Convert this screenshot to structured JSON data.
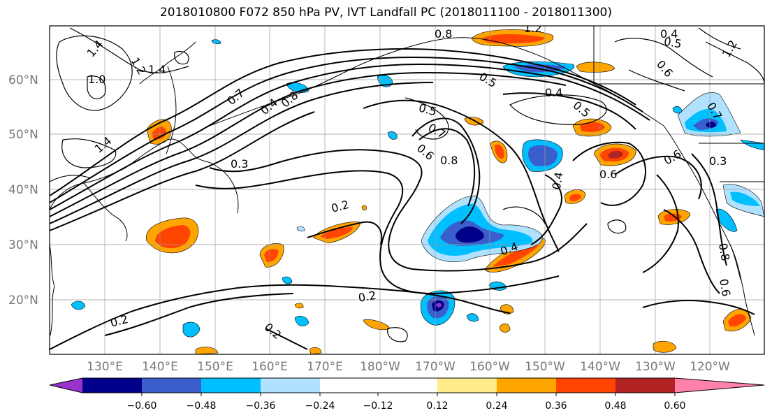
{
  "title": "2018010800 F072 850 hPa PV, IVT Landfall PC (2018011100 - 2018011300)",
  "lat_labels": [
    "60°N",
    "50°N",
    "40°N",
    "30°N",
    "20°N"
  ],
  "lon_labels": [
    "130°E",
    "140°E",
    "150°E",
    "160°E",
    "170°E",
    "180°W",
    "170°W",
    "160°W",
    "150°W",
    "140°W",
    "130°W",
    "120°W"
  ],
  "colorbar": {
    "ticks": [
      "−0.60",
      "−0.48",
      "−0.36",
      "−0.24",
      "−0.12",
      "0.12",
      "0.24",
      "0.36",
      "0.48",
      "0.60"
    ],
    "colors": [
      "#9932cc",
      "#00008b",
      "#3a5fcd",
      "#00bfff",
      "#b0e2ff",
      "#ffffff",
      "#ffec8b",
      "#ffa500",
      "#ff4500",
      "#b22222",
      "#ff82ab"
    ]
  },
  "contour_labels": [
    "1.4",
    "1.0",
    "1.2",
    "1.4",
    "1.4",
    "0.7",
    "0.4",
    "0.8",
    "0.3",
    "0.2",
    "0.2",
    "0.2",
    "0.2",
    "0.5",
    "0.7",
    "0.6",
    "0.8",
    "0.4",
    "0.4",
    "0.5",
    "0.4",
    "0.5",
    "0.6",
    "0.6",
    "0.6",
    "0.3",
    "0.8",
    "0.7",
    "0.5",
    "0.4",
    "1.2",
    "0.8",
    "0.6",
    "1.2"
  ]
}
